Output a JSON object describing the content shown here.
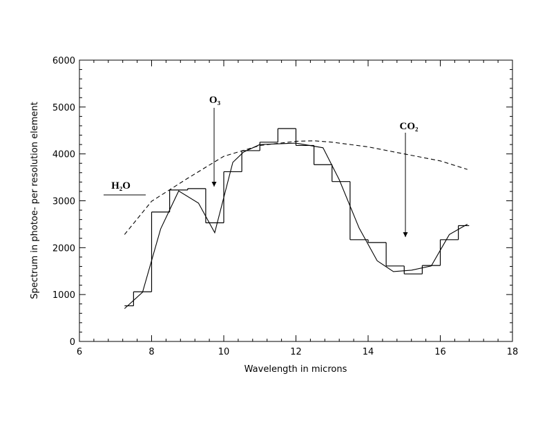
{
  "chart_data": {
    "type": "line",
    "x_label": "Wavelength in microns",
    "y_label": "Spectrum in photoe- per resolution element",
    "xlim": [
      6,
      18
    ],
    "xticks": [
      6,
      8,
      10,
      12,
      14,
      16,
      18
    ],
    "ylim": [
      0,
      6000
    ],
    "yticks": [
      0,
      1000,
      2000,
      3000,
      4000,
      5000,
      6000
    ],
    "series": [
      {
        "type": "step",
        "color": "#000",
        "bins": [
          7.25,
          7.5,
          8.0,
          8.5,
          9.0,
          9.5,
          10.0,
          10.5,
          11.0,
          11.5,
          12.0,
          12.5,
          13.0,
          13.5,
          14.0,
          14.5,
          15.0,
          15.5,
          16.0,
          16.5,
          16.8
        ],
        "values": [
          760,
          1060,
          2760,
          3230,
          3260,
          2530,
          3620,
          4070,
          4250,
          4540,
          4180,
          3770,
          3410,
          2170,
          2110,
          1610,
          1440,
          1620,
          2170,
          2470
        ]
      },
      {
        "type": "line",
        "color": "#000",
        "x": [
          7.25,
          7.75,
          8.25,
          8.75,
          9.3,
          9.75,
          10.25,
          10.55,
          11.0,
          12.0,
          12.75,
          13.2,
          13.75,
          14.25,
          14.7,
          15.2,
          15.75,
          16.25,
          16.75
        ],
        "values": [
          700,
          1050,
          2400,
          3210,
          2950,
          2320,
          3820,
          4040,
          4200,
          4230,
          4130,
          3450,
          2420,
          1720,
          1490,
          1520,
          1610,
          2280,
          2500
        ]
      },
      {
        "type": "line",
        "dash": true,
        "color": "#000",
        "x": [
          7.25,
          8,
          9,
          10,
          11,
          12,
          12.5,
          13,
          14,
          15,
          16,
          16.75
        ],
        "values": [
          2280,
          2990,
          3480,
          3950,
          4180,
          4270,
          4280,
          4250,
          4150,
          4000,
          3850,
          3670
        ]
      }
    ],
    "annotations": [
      {
        "text": "H₂O"
      },
      {
        "text": "O₃"
      },
      {
        "text": "CO₂"
      }
    ]
  }
}
